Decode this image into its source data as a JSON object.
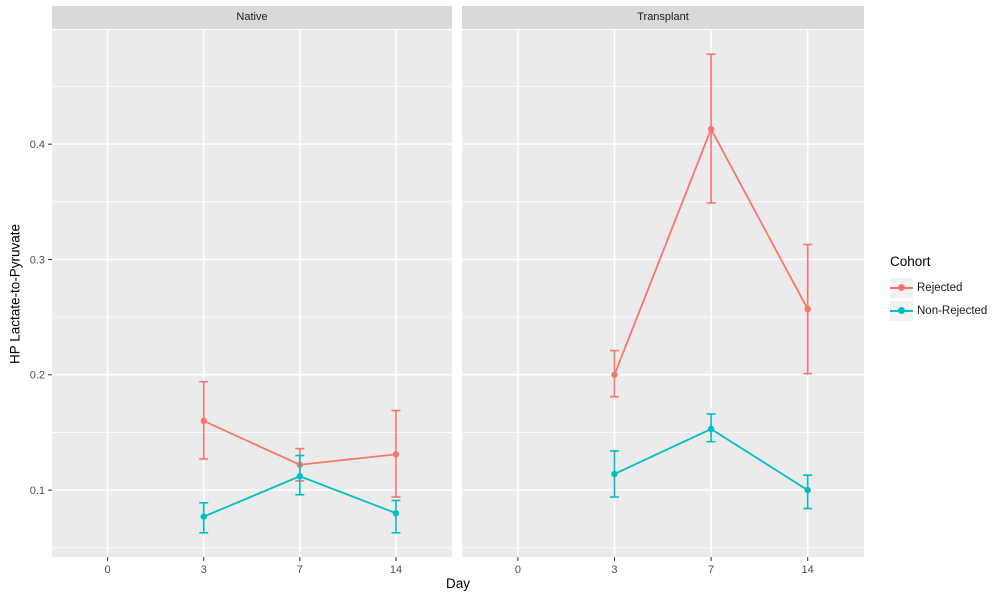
{
  "chart_data": {
    "type": "line",
    "title": "",
    "xlabel": "Day",
    "ylabel": "HP Lactate-to-Pyruvate",
    "x_categories": [
      "0",
      "3",
      "7",
      "14"
    ],
    "y_tick_labels": [
      "0.1",
      "0.2",
      "0.3",
      "0.4"
    ],
    "y_tick_values": [
      0.1,
      0.2,
      0.3,
      0.4
    ],
    "y_minor_tick_values": [
      0.05,
      0.15,
      0.25,
      0.35,
      0.45
    ],
    "ylim": [
      0.042,
      0.499
    ],
    "grid": "on",
    "legend_position": "right",
    "facets": [
      {
        "label": "Native",
        "series": [
          {
            "name": "Rejected",
            "color": "#F8766D",
            "points": [
              {
                "x": "3",
                "y": 0.16,
                "ymin": 0.127,
                "ymax": 0.194
              },
              {
                "x": "7",
                "y": 0.122,
                "ymin": 0.108,
                "ymax": 0.136
              },
              {
                "x": "14",
                "y": 0.131,
                "ymin": 0.094,
                "ymax": 0.169
              }
            ]
          },
          {
            "name": "Non-Rejected",
            "color": "#00BFC4",
            "points": [
              {
                "x": "3",
                "y": 0.077,
                "ymin": 0.063,
                "ymax": 0.089
              },
              {
                "x": "7",
                "y": 0.112,
                "ymin": 0.096,
                "ymax": 0.13
              },
              {
                "x": "14",
                "y": 0.08,
                "ymin": 0.063,
                "ymax": 0.091
              }
            ]
          }
        ]
      },
      {
        "label": "Transplant",
        "series": [
          {
            "name": "Rejected",
            "color": "#F8766D",
            "points": [
              {
                "x": "3",
                "y": 0.2,
                "ymin": 0.181,
                "ymax": 0.221
              },
              {
                "x": "7",
                "y": 0.413,
                "ymin": 0.349,
                "ymax": 0.478
              },
              {
                "x": "14",
                "y": 0.257,
                "ymin": 0.201,
                "ymax": 0.313
              }
            ]
          },
          {
            "name": "Non-Rejected",
            "color": "#00BFC4",
            "points": [
              {
                "x": "3",
                "y": 0.114,
                "ymin": 0.094,
                "ymax": 0.134
              },
              {
                "x": "7",
                "y": 0.153,
                "ymin": 0.142,
                "ymax": 0.166
              },
              {
                "x": "14",
                "y": 0.1,
                "ymin": 0.084,
                "ymax": 0.113
              }
            ]
          }
        ]
      }
    ],
    "legend": {
      "title": "Cohort",
      "entries": [
        {
          "label": "Rejected",
          "color": "#F8766D"
        },
        {
          "label": "Non-Rejected",
          "color": "#00BFC4"
        }
      ]
    },
    "theme": {
      "panel_bg": "#EBEBEB",
      "strip_bg": "#D9D9D9",
      "grid_color": "#FFFFFF",
      "axis_text_color": "#4D4D4D",
      "tick_color": "#333333",
      "title_color": "#000000",
      "legend_key_bg": "#F2F2F2",
      "background": "#FFFFFF"
    }
  }
}
